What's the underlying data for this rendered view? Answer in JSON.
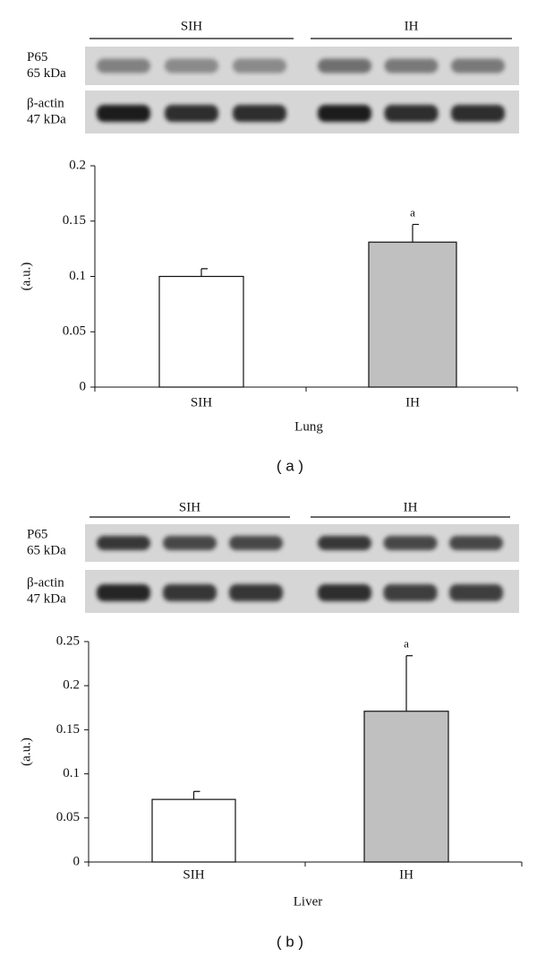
{
  "chart_data": [
    {
      "type": "bar",
      "panel_label": "( a )",
      "xlabel": "Lung",
      "ylabel": "(a.u.)",
      "blot": {
        "groups": [
          "SIH",
          "IH"
        ],
        "rows": [
          {
            "name": "P65",
            "size": "65 kDa"
          },
          {
            "name": "β-actin",
            "size": "47 kDa"
          }
        ]
      },
      "categories": [
        "SIH",
        "IH"
      ],
      "values": [
        0.1,
        0.131
      ],
      "errors": [
        0.007,
        0.016
      ],
      "colors": [
        "#ffffff",
        "#c0c0c0"
      ],
      "annotations": [
        {
          "category": "IH",
          "text": "a"
        }
      ],
      "ylim": [
        0,
        0.2
      ],
      "yticks": [
        0,
        0.05,
        0.1,
        0.15,
        0.2
      ]
    },
    {
      "type": "bar",
      "panel_label": "( b )",
      "xlabel": "Liver",
      "ylabel": "(a.u.)",
      "blot": {
        "groups": [
          "SIH",
          "IH"
        ],
        "rows": [
          {
            "name": "P65",
            "size": "65 kDa"
          },
          {
            "name": "β-actin",
            "size": "47 kDa"
          }
        ]
      },
      "categories": [
        "SIH",
        "IH"
      ],
      "values": [
        0.071,
        0.171
      ],
      "errors": [
        0.009,
        0.063
      ],
      "colors": [
        "#ffffff",
        "#c0c0c0"
      ],
      "annotations": [
        {
          "category": "IH",
          "text": "a"
        }
      ],
      "ylim": [
        0,
        0.25
      ],
      "yticks": [
        0,
        0.05,
        0.1,
        0.15,
        0.2,
        0.25
      ]
    }
  ]
}
